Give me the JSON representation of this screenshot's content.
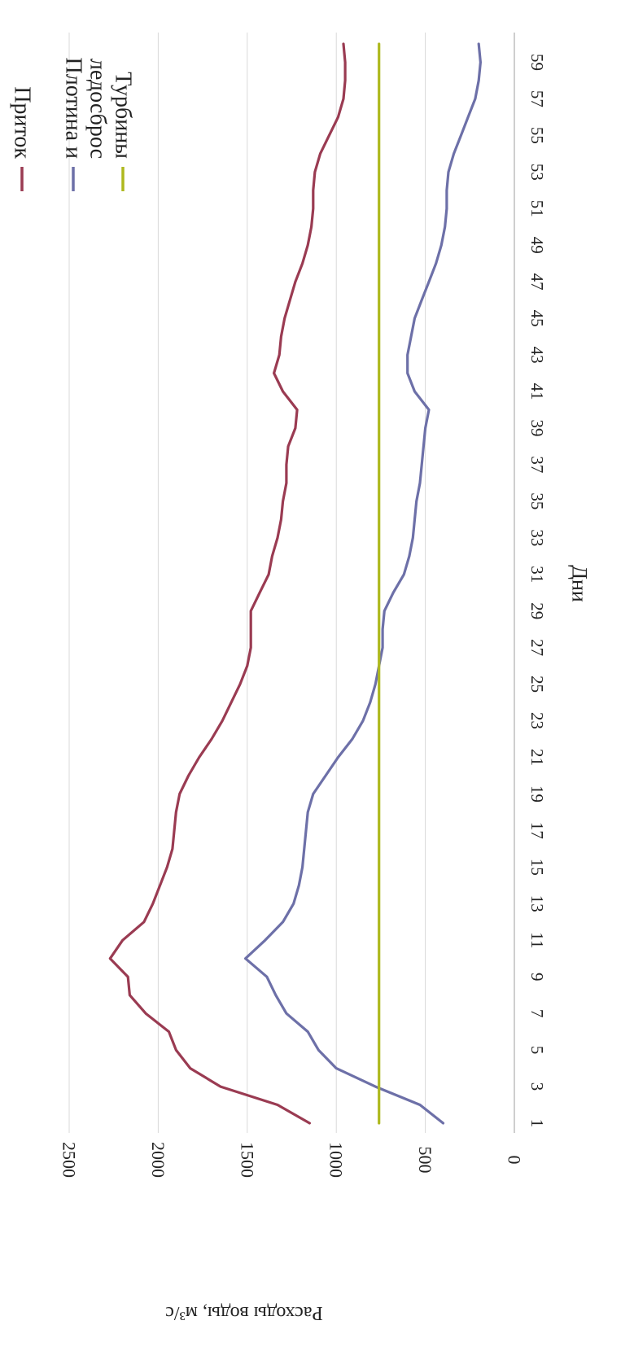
{
  "chart_data": {
    "type": "line",
    "orientation": "rotated-90-clockwise",
    "title": "",
    "xlabel": "Дни",
    "ylabel": "Расходы воды, м³/с",
    "x": [
      1,
      2,
      3,
      4,
      5,
      6,
      7,
      8,
      9,
      10,
      11,
      12,
      13,
      14,
      15,
      16,
      17,
      18,
      19,
      20,
      21,
      22,
      23,
      24,
      25,
      26,
      27,
      28,
      29,
      30,
      31,
      32,
      33,
      34,
      35,
      36,
      37,
      38,
      39,
      40,
      41,
      42,
      43,
      44,
      45,
      46,
      47,
      48,
      49,
      50,
      51,
      52,
      53,
      54,
      55,
      56,
      57,
      58,
      59,
      60
    ],
    "x_ticks": [
      "1",
      "3",
      "5",
      "7",
      "9",
      "11",
      "13",
      "15",
      "17",
      "19",
      "21",
      "23",
      "25",
      "27",
      "29",
      "31",
      "33",
      "35",
      "37",
      "39",
      "41",
      "43",
      "45",
      "47",
      "49",
      "51",
      "53",
      "55",
      "57",
      "59"
    ],
    "ylim": [
      0,
      2500
    ],
    "y_ticks": [
      "0",
      "500",
      "1000",
      "1500",
      "2000",
      "2500"
    ],
    "grid": true,
    "legend_position": "top-right",
    "series": [
      {
        "name": "Приток",
        "color": "#9a3b52",
        "values": [
          1150,
          1330,
          1650,
          1820,
          1900,
          1940,
          2070,
          2160,
          2170,
          2270,
          2200,
          2080,
          2030,
          1990,
          1950,
          1920,
          1910,
          1900,
          1880,
          1830,
          1770,
          1700,
          1640,
          1590,
          1540,
          1500,
          1480,
          1480,
          1480,
          1430,
          1380,
          1360,
          1330,
          1310,
          1300,
          1280,
          1280,
          1270,
          1230,
          1220,
          1300,
          1350,
          1320,
          1310,
          1290,
          1260,
          1230,
          1190,
          1160,
          1140,
          1130,
          1130,
          1120,
          1090,
          1040,
          990,
          960,
          950,
          950,
          960
        ]
      },
      {
        "name": "Плотина и ледосброс",
        "color": "#6d70a8",
        "values": [
          400,
          530,
          780,
          1000,
          1100,
          1160,
          1280,
          1340,
          1390,
          1510,
          1400,
          1300,
          1240,
          1210,
          1190,
          1180,
          1170,
          1160,
          1130,
          1060,
          990,
          910,
          850,
          810,
          780,
          760,
          740,
          740,
          730,
          680,
          620,
          590,
          570,
          560,
          550,
          530,
          520,
          510,
          500,
          480,
          560,
          600,
          600,
          580,
          560,
          520,
          480,
          440,
          410,
          390,
          380,
          380,
          370,
          340,
          300,
          260,
          220,
          200,
          190,
          200
        ]
      },
      {
        "name": "Турбины",
        "color": "#aeb81e",
        "values": [
          760,
          760,
          760,
          760,
          760,
          760,
          760,
          760,
          760,
          760,
          760,
          760,
          760,
          760,
          760,
          760,
          760,
          760,
          760,
          760,
          760,
          760,
          760,
          760,
          760,
          760,
          760,
          760,
          760,
          760,
          760,
          760,
          760,
          760,
          760,
          760,
          760,
          760,
          760,
          760,
          760,
          760,
          760,
          760,
          760,
          760,
          760,
          760,
          760,
          760,
          760,
          760,
          760,
          760,
          760,
          760,
          760,
          760,
          760,
          760
        ]
      }
    ]
  }
}
